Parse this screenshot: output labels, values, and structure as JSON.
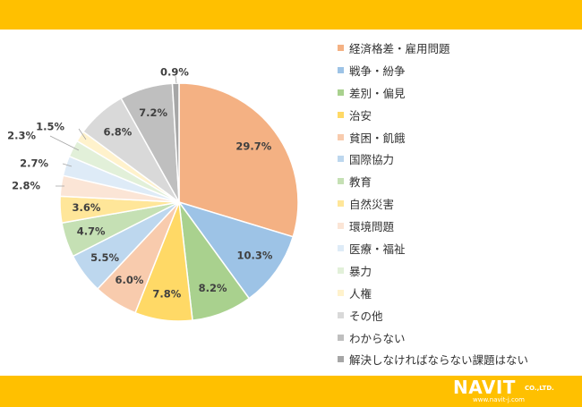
{
  "chart_data": {
    "type": "pie",
    "slices": [
      {
        "label": "経済格差・雇用問題",
        "value": 29.7,
        "value_label": "29.7%",
        "color": "#F4B183"
      },
      {
        "label": "戦争・紛争",
        "value": 10.3,
        "value_label": "10.3%",
        "color": "#9DC3E6"
      },
      {
        "label": "差別・偏見",
        "value": 8.2,
        "value_label": "8.2%",
        "color": "#A9D18E"
      },
      {
        "label": "治安",
        "value": 7.8,
        "value_label": "7.8%",
        "color": "#FFD966"
      },
      {
        "label": "貧困・飢餓",
        "value": 6.0,
        "value_label": "6.0%",
        "color": "#F8CBAD"
      },
      {
        "label": "国際協力",
        "value": 5.5,
        "value_label": "5.5%",
        "color": "#BDD7EE"
      },
      {
        "label": "教育",
        "value": 4.7,
        "value_label": "4.7%",
        "color": "#C5E0B4"
      },
      {
        "label": "自然災害",
        "value": 3.6,
        "value_label": "3.6%",
        "color": "#FFE699"
      },
      {
        "label": "環境問題",
        "value": 2.8,
        "value_label": "2.8%",
        "color": "#FBE5D6"
      },
      {
        "label": "医療・福祉",
        "value": 2.7,
        "value_label": "2.7%",
        "color": "#DEEBF7"
      },
      {
        "label": "暴力",
        "value": 2.3,
        "value_label": "2.3%",
        "color": "#E2F0D9"
      },
      {
        "label": "人権",
        "value": 1.5,
        "value_label": "1.5%",
        "color": "#FFF2CC"
      },
      {
        "label": "その他",
        "value": 6.8,
        "value_label": "6.8%",
        "color": "#D9D9D9"
      },
      {
        "label": "わからない",
        "value": 7.2,
        "value_label": "7.2%",
        "color": "#BFBFBF"
      },
      {
        "label": "解決しなければならない課題はない",
        "value": 0.9,
        "value_label": "0.9%",
        "color": "#A6A6A6"
      }
    ],
    "legend_position": "right"
  },
  "brand": {
    "name": "NAVIT",
    "suffix": "CO.,LTD.",
    "url": "www.navit-j.com",
    "bar_color": "#FFC000"
  }
}
